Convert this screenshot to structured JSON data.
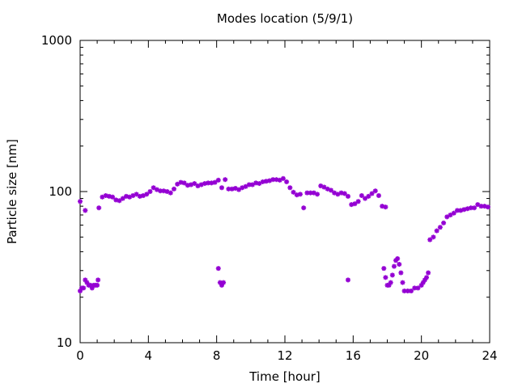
{
  "chart_data": {
    "type": "scatter",
    "title": "Modes location (5/9/1)",
    "xlabel": "Time [hour]",
    "ylabel": "Particle size [nm]",
    "xlim": [
      0,
      24
    ],
    "ylim": [
      10,
      1000
    ],
    "yscale": "log",
    "grid": false,
    "legend": "none",
    "xticks": [
      0,
      4,
      8,
      12,
      16,
      20,
      24
    ],
    "xtick_labels": [
      "0",
      "4",
      "8",
      "12",
      "16",
      "20",
      "24"
    ],
    "yticks": [
      10,
      100,
      1000
    ],
    "ytick_labels": [
      "10",
      "100",
      "1000"
    ],
    "marker_color": "#9400d3",
    "series": [
      {
        "x": [
          0.0,
          0.3,
          1.1,
          1.3,
          1.5,
          1.7,
          1.9,
          2.1,
          2.3,
          2.5,
          2.7,
          2.9,
          3.1,
          3.3,
          3.5,
          3.7,
          3.9,
          4.1,
          4.3,
          4.5,
          4.7,
          4.9,
          5.1,
          5.3,
          5.5,
          5.7,
          5.9,
          6.1,
          6.3,
          6.5,
          6.7,
          6.9,
          7.1,
          7.3,
          7.5,
          7.7,
          7.9,
          8.1,
          8.3,
          8.5,
          8.7,
          8.9,
          9.1,
          9.3,
          9.5,
          9.7,
          9.9,
          10.1,
          10.3,
          10.5,
          10.7,
          10.9,
          11.1,
          11.3,
          11.5,
          11.7,
          11.9,
          12.1,
          12.3,
          12.5,
          12.7,
          12.9,
          13.1,
          13.3,
          13.5,
          13.7,
          13.9,
          14.1,
          14.3,
          14.5,
          14.7,
          14.9,
          15.1,
          15.3,
          15.5,
          15.7,
          15.9,
          16.1,
          16.3,
          16.5,
          16.7,
          16.9,
          17.1,
          17.3,
          17.5,
          17.7,
          17.9,
          20.5,
          20.7,
          20.9,
          21.1,
          21.3,
          21.5,
          21.7,
          21.9,
          22.1,
          22.3,
          22.5,
          22.7,
          22.9,
          23.1,
          23.3,
          23.5,
          23.7,
          23.9
        ],
        "y": [
          86,
          75,
          78,
          92,
          94,
          93,
          92,
          88,
          87,
          90,
          93,
          92,
          94,
          96,
          93,
          94,
          96,
          100,
          106,
          103,
          101,
          101,
          100,
          98,
          104,
          112,
          115,
          114,
          110,
          111,
          113,
          109,
          111,
          113,
          114,
          114,
          115,
          119,
          106,
          120,
          104,
          104,
          105,
          103,
          106,
          108,
          111,
          111,
          114,
          113,
          116,
          117,
          118,
          120,
          120,
          119,
          122,
          116,
          106,
          99,
          95,
          96,
          78,
          98,
          98,
          98,
          96,
          109,
          107,
          104,
          102,
          98,
          96,
          98,
          97,
          93,
          82,
          83,
          86,
          94,
          90,
          93,
          97,
          101,
          94,
          80,
          79,
          48,
          50,
          55,
          58,
          62,
          68,
          70,
          72,
          75,
          75,
          76,
          77,
          78,
          78,
          82,
          80,
          80,
          79
        ]
      },
      {
        "x": [
          0.0,
          0.1,
          0.2,
          0.3,
          0.4,
          0.5,
          0.6,
          0.7,
          0.8,
          0.9,
          1.0,
          1.05,
          8.1,
          8.2,
          8.3,
          8.4,
          15.7,
          17.8,
          17.9,
          18.0,
          18.1,
          18.2,
          18.3,
          18.4,
          18.5,
          18.6,
          18.7,
          18.8,
          18.9,
          19.0,
          19.2,
          19.4,
          19.6,
          19.8,
          20.0,
          20.1,
          20.2,
          20.3,
          20.4
        ],
        "y": [
          22,
          23,
          23,
          26,
          25,
          24,
          24,
          23,
          24,
          24,
          24,
          26,
          31,
          25,
          24,
          25,
          26,
          31,
          27,
          24,
          24,
          25,
          28,
          32,
          35,
          36,
          33,
          29,
          25,
          22,
          22,
          22,
          23,
          23,
          24,
          25,
          26,
          27,
          29
        ]
      }
    ]
  }
}
